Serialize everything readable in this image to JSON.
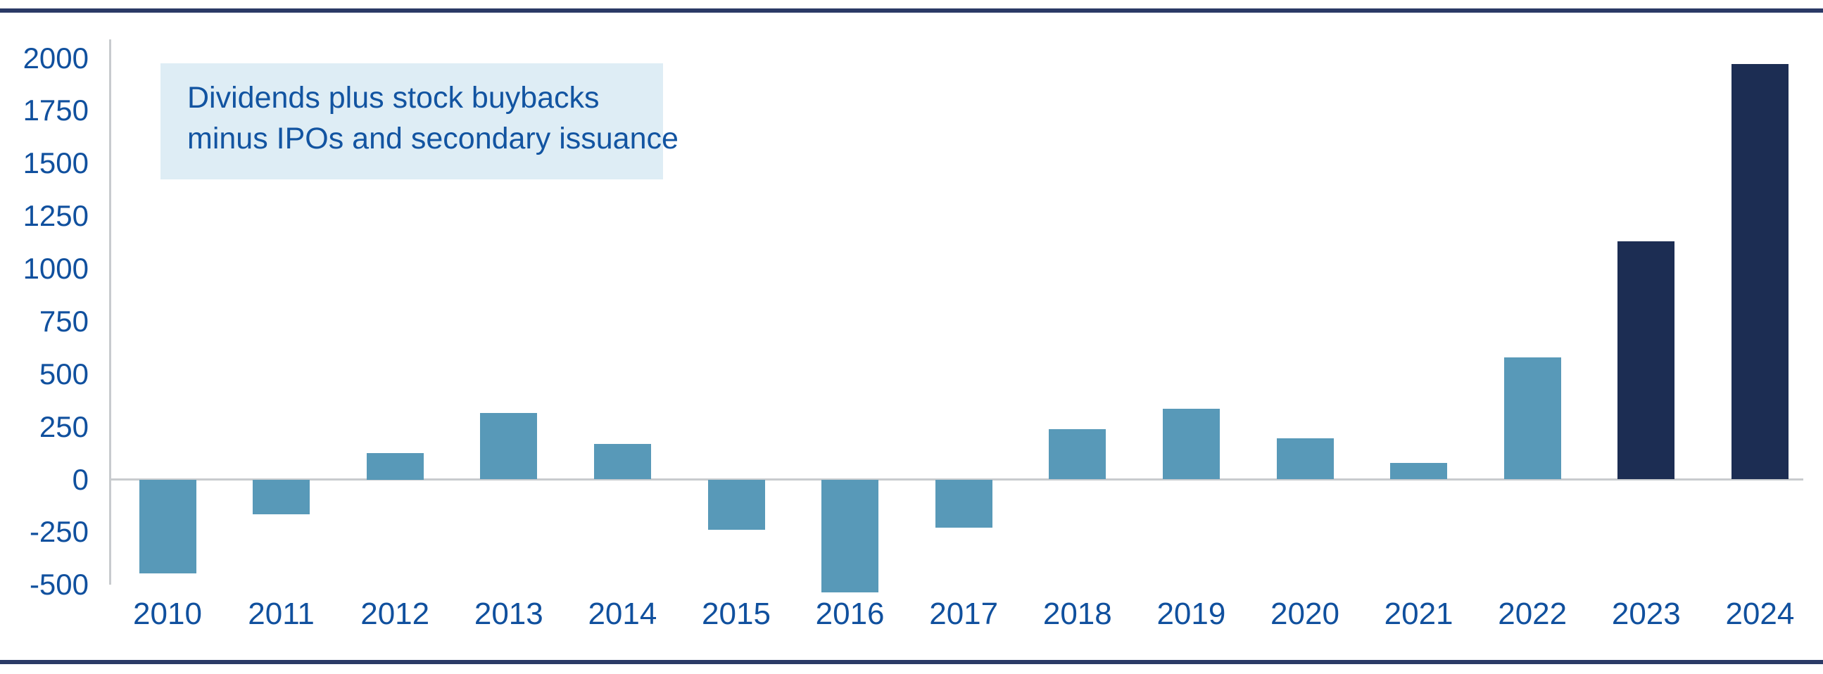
{
  "chart_data": {
    "type": "bar",
    "annotation": {
      "line1": "Dividends plus stock buybacks",
      "line2": "minus IPOs and secondary issuance"
    },
    "categories": [
      "2010",
      "2011",
      "2012",
      "2013",
      "2014",
      "2015",
      "2016",
      "2017",
      "2018",
      "2019",
      "2020",
      "2021",
      "2022",
      "2023",
      "2024"
    ],
    "values": [
      -445,
      -165,
      125,
      315,
      170,
      -240,
      -535,
      -230,
      240,
      335,
      195,
      80,
      580,
      1130,
      1970
    ],
    "bar_color_keys": [
      "light",
      "light",
      "light",
      "light",
      "light",
      "light",
      "light",
      "light",
      "light",
      "light",
      "light",
      "light",
      "light",
      "dark",
      "dark"
    ],
    "y_ticks": [
      2000,
      1750,
      1500,
      1250,
      1000,
      750,
      500,
      250,
      0,
      -250,
      -500
    ],
    "ylim": [
      -560,
      2075
    ],
    "xlabel": "",
    "ylabel": "",
    "legend_position": "none",
    "grid": "zero-line-only"
  },
  "colors": {
    "bar_light": "#5899B8",
    "bar_dark": "#1C2D53",
    "axis_label_text": "#10509E",
    "annotation_text": "#1254A1",
    "annotation_bg": "#DEEDF5",
    "frame_border": "#2B3A66",
    "zero_line": "#C8CBCE"
  }
}
